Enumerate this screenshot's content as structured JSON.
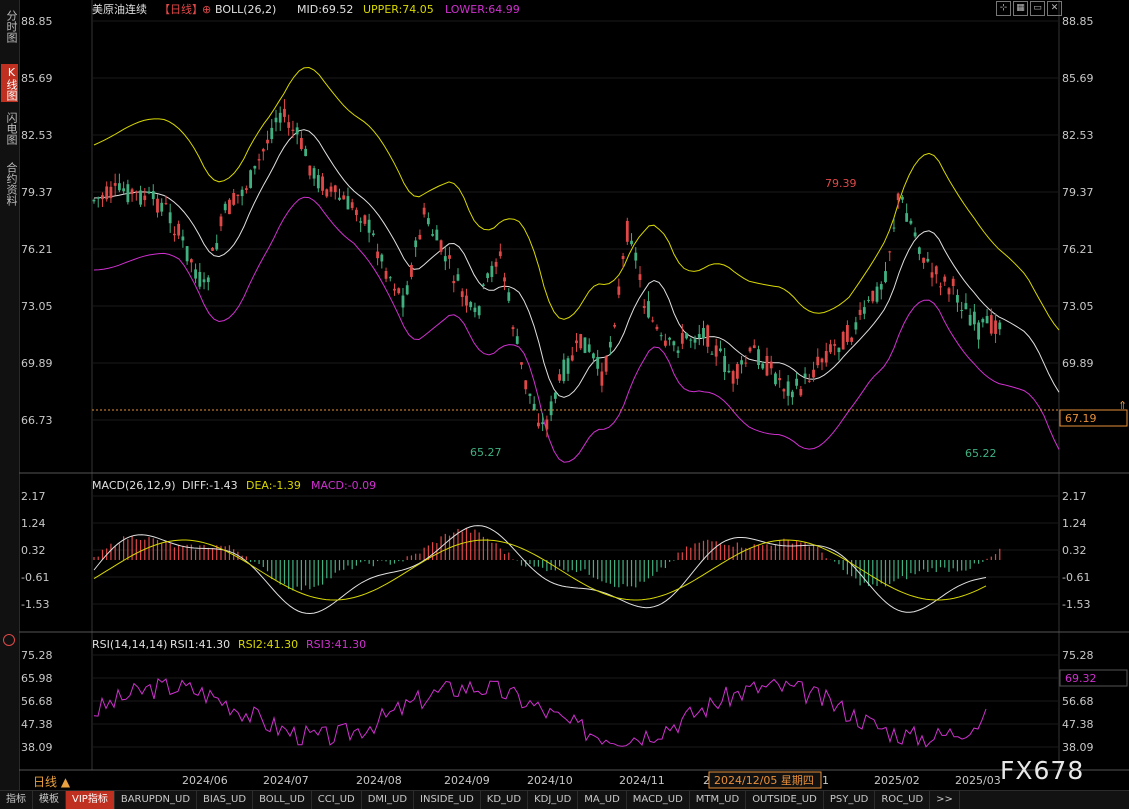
{
  "left_tabs": [
    {
      "label": "分时图",
      "active": false
    },
    {
      "label": "K线图",
      "sub": "K",
      "active": true
    },
    {
      "label": "闪电图",
      "active": false
    },
    {
      "label": "合约资料",
      "active": false
    }
  ],
  "main": {
    "title": "美原油连续",
    "period_tag": "【日线】",
    "indicator": "BOLL(26,2)",
    "mid_label": "MID:69.52",
    "upper_label": "UPPER:74.05",
    "lower_label": "LOWER:64.99",
    "price_ticks": [
      "88.85",
      "85.69",
      "82.53",
      "79.37",
      "76.21",
      "73.05",
      "69.89",
      "66.73"
    ],
    "current_price": "67.19",
    "high_mark": "79.39",
    "low_mark_1": "65.27",
    "low_mark_2": "65.22"
  },
  "macd": {
    "title": "MACD(26,12,9)",
    "diff_label": "DIFF:-1.43",
    "dea_label": "DEA:-1.39",
    "macd_label": "MACD:-0.09",
    "ticks": [
      "2.17",
      "1.24",
      "0.32",
      "-0.61",
      "-1.53"
    ]
  },
  "rsi": {
    "title": "RSI(14,14,14)",
    "rsi1_label": "RSI1:41.30",
    "rsi2_label": "RSI2:41.30",
    "rsi3_label": "RSI3:41.30",
    "ticks": [
      "75.28",
      "65.98",
      "56.68",
      "47.38",
      "38.09"
    ],
    "current": "69.32"
  },
  "x_axis": {
    "labels": [
      "2024/06",
      "2024/07",
      "2024/08",
      "2024/09",
      "2024/10",
      "2024/11",
      "2025/02",
      "2025/03"
    ],
    "cursor_label": "2024/12/05 星期四",
    "hidden_left": "2",
    "hidden_right": "1"
  },
  "period_label": "日线 ▲",
  "bottom_tabs": [
    "指标",
    "模板",
    "VIP指标",
    "BARUPDN_UD",
    "BIAS_UD",
    "BOLL_UD",
    "CCI_UD",
    "DMI_UD",
    "INSIDE_UD",
    "KD_UD",
    "KDJ_UD",
    "MA_UD",
    "MACD_UD",
    "MTM_UD",
    "OUTSIDE_UD",
    "PSY_UD",
    "ROC_UD",
    ">>"
  ],
  "watermark": "FX678",
  "colors": {
    "up": "#e04848",
    "down": "#40b080",
    "upper": "#d8d800",
    "lower": "#d030d0",
    "mid": "#e0e0e0",
    "accent": "#c03020"
  }
}
